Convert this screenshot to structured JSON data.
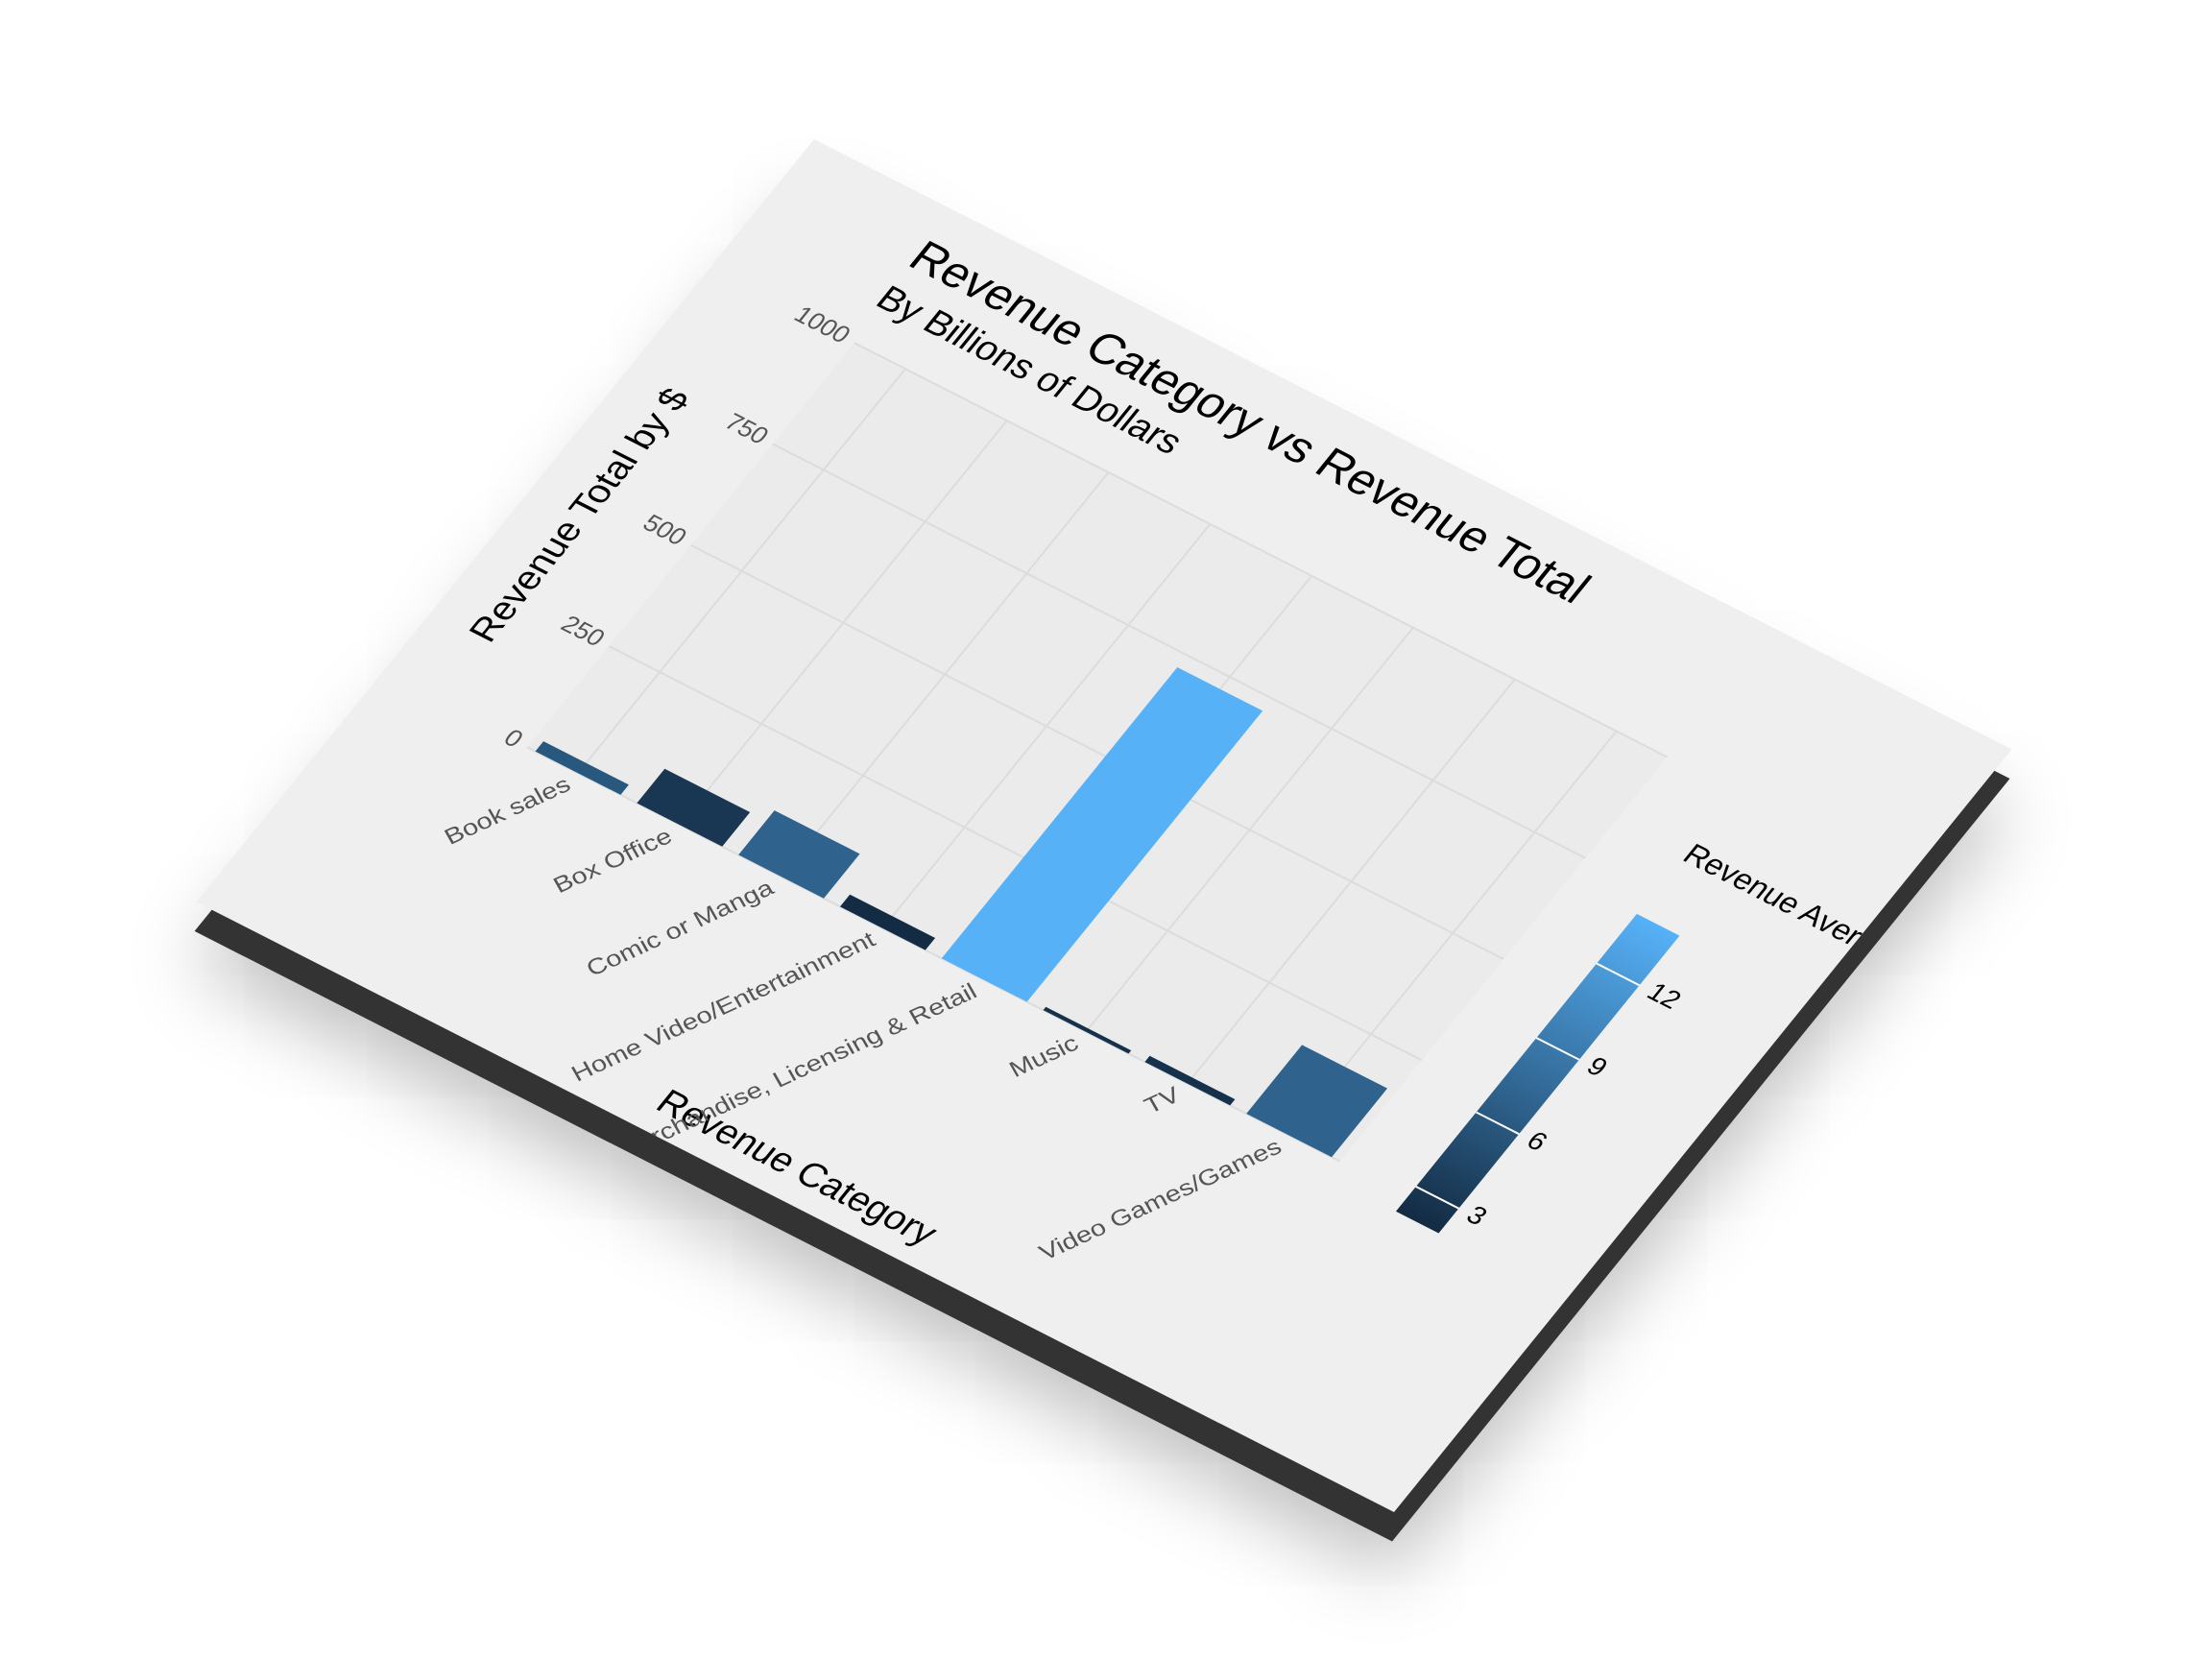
{
  "chart_data": {
    "type": "bar",
    "title": "Revenue Category vs Revenue Total",
    "subtitle": "By Billions of Dollars",
    "x_label": "Revenue Category",
    "y_label": "Revenue Total by $",
    "categories": [
      "Book sales",
      "Box Office",
      "Comic or Manga",
      "Home Video/Entertainment",
      "Merchandise, Licensing & Retail",
      "Music",
      "TV",
      "Video Games/Games"
    ],
    "values": [
      25,
      85,
      110,
      30,
      720,
      8,
      15,
      170
    ],
    "fill_values": [
      6,
      3,
      7,
      2,
      14,
      2.5,
      2.5,
      7
    ],
    "ylim": [
      0,
      1000
    ],
    "yticks": [
      0,
      250,
      500,
      750,
      1000
    ],
    "grid": true,
    "fill_scale": {
      "title": "Revenue Average Billions",
      "low": "#132B43",
      "high": "#56B1F7",
      "lim": [
        2,
        14
      ],
      "ticks": [
        3,
        6,
        9,
        12
      ]
    }
  }
}
